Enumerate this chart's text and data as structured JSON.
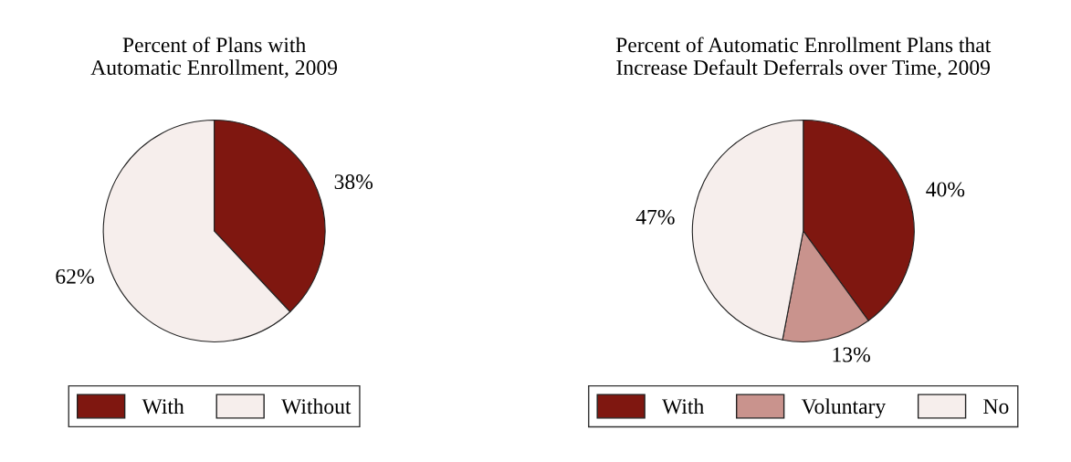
{
  "chart_data": [
    {
      "type": "pie",
      "title": "Percent of Plans with\nAutomatic Enrollment, 2009",
      "categories": [
        "With",
        "Without"
      ],
      "values": [
        38,
        62
      ],
      "colors": [
        "#7f1710",
        "#f6eeec"
      ],
      "value_labels": [
        "38%",
        "62%"
      ],
      "legend": "bottom"
    },
    {
      "type": "pie",
      "title": "Percent of Automatic Enrollment Plans that\nIncrease Default Deferrals over Time, 2009",
      "categories": [
        "With",
        "Voluntary",
        "No"
      ],
      "values": [
        40,
        13,
        47
      ],
      "colors": [
        "#7f1710",
        "#c9938d",
        "#f6eeec"
      ],
      "value_labels": [
        "40%",
        "13%",
        "47%"
      ],
      "legend": "bottom"
    }
  ]
}
